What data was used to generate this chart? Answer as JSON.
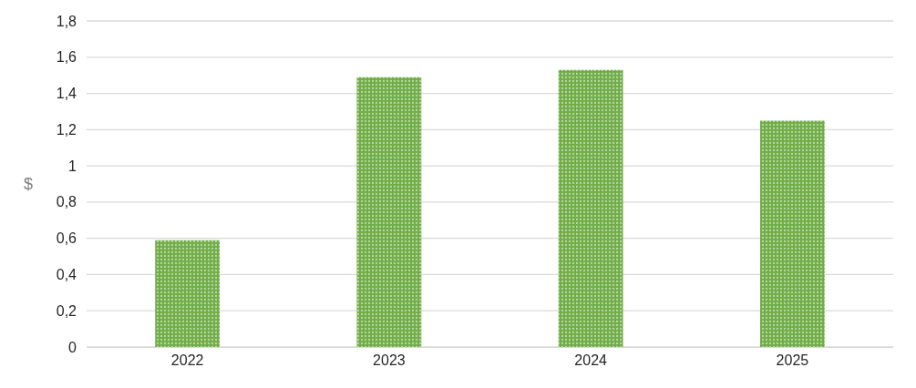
{
  "chart_data": {
    "type": "bar",
    "ylabel": "$",
    "categories": [
      "2022",
      "2023",
      "2024",
      "2025"
    ],
    "values": [
      0.59,
      1.49,
      1.53,
      1.25
    ],
    "color": "#70ad47",
    "ylim": [
      0,
      1.8
    ],
    "yticks": [
      0,
      {
        "value": 0.2,
        "label": "0,2"
      },
      {
        "value": 0.4,
        "label": "0,4"
      },
      {
        "value": 0.6,
        "label": "0,6"
      },
      {
        "value": 0.8,
        "label": "0,8"
      },
      1,
      {
        "value": 1.2,
        "label": "1,2"
      },
      {
        "value": 1.4,
        "label": "1,4"
      },
      {
        "value": 1.6,
        "label": "1,6"
      },
      {
        "value": 1.8,
        "label": "1,8"
      }
    ],
    "grid": "y",
    "legend": false
  }
}
